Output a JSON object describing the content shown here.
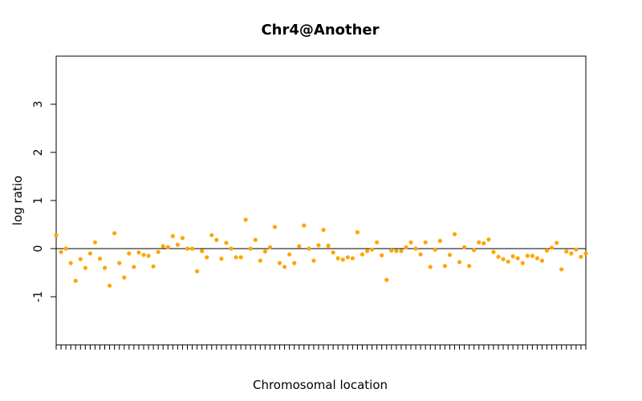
{
  "chart_data": {
    "type": "scatter",
    "title": "Chr4@Another",
    "xlabel": "Chromosomal location",
    "ylabel": "log ratio",
    "ylim": [
      -2,
      4
    ],
    "yticks": [
      -1,
      0,
      1,
      2,
      3
    ],
    "ytick_labels": [
      "-1",
      "0",
      "1",
      "2",
      "3"
    ],
    "zero_line": true,
    "grid": false,
    "point_color": "#FFA500",
    "x": [
      0,
      1,
      2,
      3,
      4,
      5,
      6,
      7,
      8,
      9,
      10,
      11,
      12,
      13,
      14,
      15,
      16,
      17,
      18,
      19,
      20,
      21,
      22,
      23,
      24,
      25,
      26,
      27,
      28,
      29,
      30,
      31,
      32,
      33,
      34,
      35,
      36,
      37,
      38,
      39,
      40,
      41,
      42,
      43,
      44,
      45,
      46,
      47,
      48,
      49,
      50,
      51,
      52,
      53,
      54,
      55,
      56,
      57,
      58,
      59,
      60,
      61,
      62,
      63,
      64,
      65,
      66,
      67,
      68,
      69,
      70,
      71,
      72,
      73,
      74,
      75,
      76,
      77,
      78,
      79,
      80,
      81,
      82,
      83,
      84,
      85,
      86,
      87,
      88,
      89,
      90,
      91,
      92,
      93,
      94,
      95,
      96,
      97,
      98,
      99,
      100,
      101,
      102,
      103,
      104,
      105,
      106,
      107,
      108,
      109
    ],
    "y": [
      0.28,
      -0.07,
      0.0,
      -0.3,
      -0.67,
      -0.22,
      -0.4,
      -0.1,
      0.13,
      -0.21,
      -0.4,
      -0.77,
      0.32,
      -0.3,
      -0.6,
      -0.1,
      -0.38,
      -0.08,
      -0.13,
      -0.15,
      -0.37,
      -0.07,
      0.05,
      0.03,
      0.26,
      0.08,
      0.22,
      0.0,
      0.0,
      -0.47,
      -0.05,
      -0.18,
      0.28,
      0.18,
      -0.21,
      0.12,
      0.0,
      -0.18,
      -0.18,
      0.6,
      0.0,
      0.18,
      -0.25,
      -0.06,
      0.03,
      0.45,
      -0.3,
      -0.38,
      -0.12,
      -0.3,
      0.05,
      0.48,
      0.0,
      -0.25,
      0.07,
      0.39,
      0.06,
      -0.08,
      -0.2,
      -0.23,
      -0.18,
      -0.2,
      0.34,
      -0.12,
      -0.05,
      -0.02,
      0.13,
      -0.14,
      -0.65,
      -0.04,
      -0.05,
      -0.05,
      0.03,
      0.13,
      0.0,
      -0.12,
      0.13,
      -0.38,
      -0.02,
      0.16,
      -0.36,
      -0.13,
      0.3,
      -0.28,
      0.03,
      -0.36,
      -0.03,
      0.13,
      0.11,
      0.19,
      -0.07,
      -0.17,
      -0.22,
      -0.27,
      -0.16,
      -0.2,
      -0.3,
      -0.15,
      -0.15,
      -0.2,
      -0.25,
      -0.04,
      0.02,
      0.12,
      -0.43,
      -0.06,
      -0.1,
      -0.02,
      -0.17,
      -0.1
    ]
  }
}
